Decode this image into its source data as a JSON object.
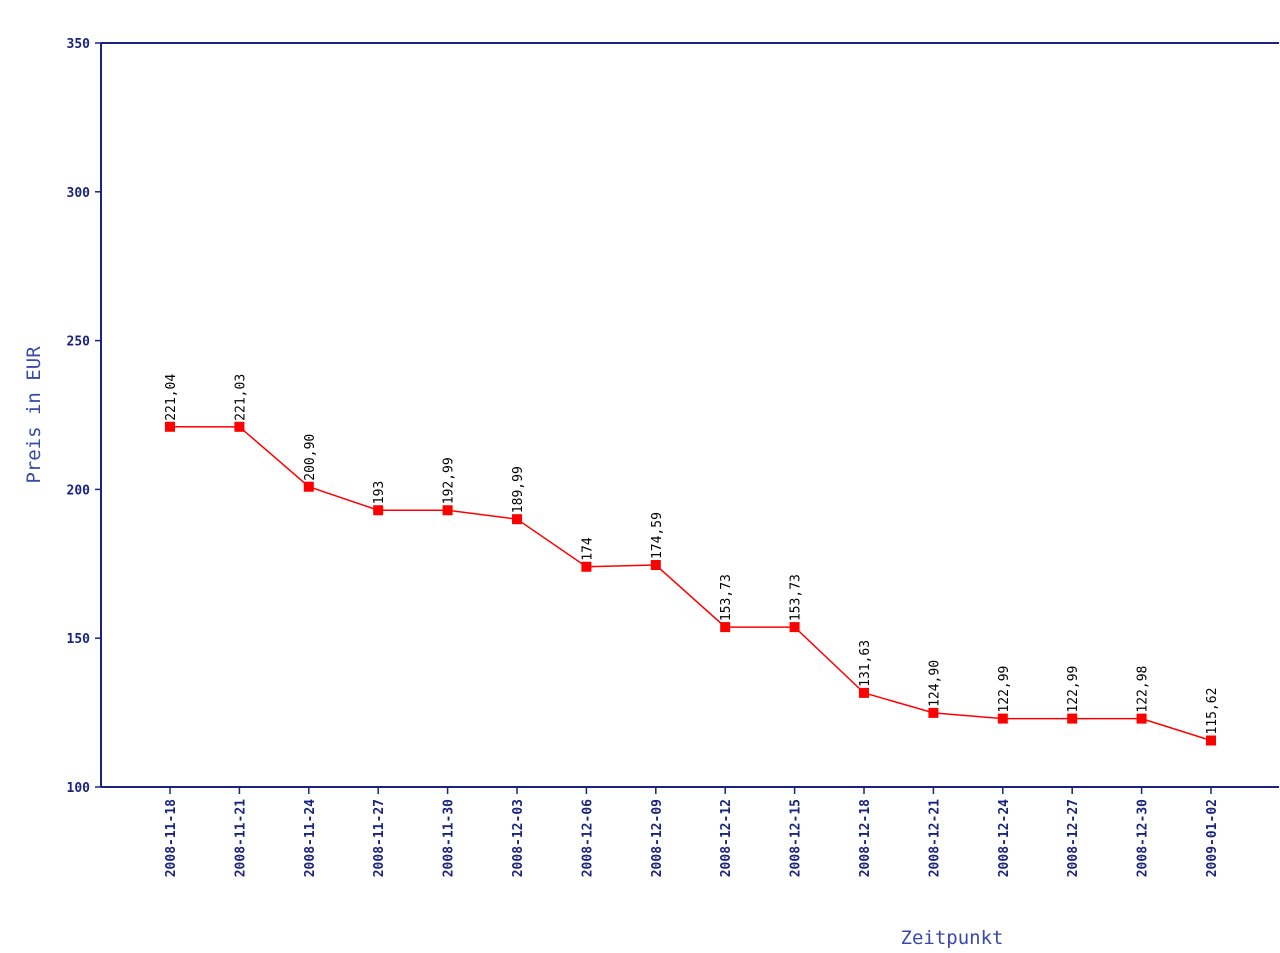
{
  "chart_data": {
    "type": "line",
    "title": "",
    "xlabel": "Zeitpunkt",
    "ylabel": "Preis in EUR",
    "ylim": [
      100,
      350
    ],
    "yticks": [
      100,
      150,
      200,
      250,
      300,
      350
    ],
    "grid": false,
    "categories": [
      "2008-11-18",
      "2008-11-21",
      "2008-11-24",
      "2008-11-27",
      "2008-11-30",
      "2008-12-03",
      "2008-12-06",
      "2008-12-09",
      "2008-12-12",
      "2008-12-15",
      "2008-12-18",
      "2008-12-21",
      "2008-12-24",
      "2008-12-27",
      "2008-12-30",
      "2009-01-02"
    ],
    "values": [
      221.04,
      221.03,
      200.9,
      193,
      192.99,
      189.99,
      174,
      174.59,
      153.73,
      153.73,
      131.63,
      124.9,
      122.99,
      122.99,
      122.98,
      115.62
    ],
    "data_labels": [
      "221,04",
      "221,03",
      "200,90",
      "193",
      "192,99",
      "189,99",
      "174",
      "174,59",
      "153,73",
      "153,73",
      "131,63",
      "124,90",
      "122,99",
      "122,99",
      "122,98",
      "115,62"
    ],
    "colors": {
      "series": "#ff0000",
      "marker": "#ff0000",
      "axis": "#1a237e",
      "axis_title": "#3949ab",
      "data_label": "#000000"
    }
  }
}
